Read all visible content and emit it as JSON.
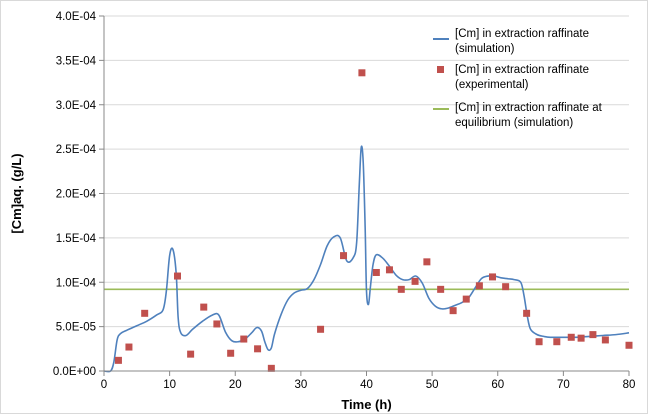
{
  "chart_data": {
    "type": "line",
    "title": "",
    "xlabel": "Time (h)",
    "ylabel": "[Cm]aq. (g/L)",
    "xlim": [
      0,
      80
    ],
    "ylim": [
      0,
      0.0004
    ],
    "x_ticks": [
      0,
      10,
      20,
      30,
      40,
      50,
      60,
      70,
      80
    ],
    "y_ticks": [
      0,
      5e-05,
      0.0001,
      0.00015,
      0.0002,
      0.00025,
      0.0003,
      0.00035,
      0.0004
    ],
    "y_tick_labels": [
      "0.0E+00",
      "5.0E-05",
      "1.0E-04",
      "1.5E-04",
      "2.0E-04",
      "2.5E-04",
      "3.0E-04",
      "3.5E-04",
      "4.0E-04"
    ],
    "grid": "horizontal",
    "legend_position": "top-right",
    "series": [
      {
        "name": "[Cm] in extraction raffinate (simulation)",
        "kind": "line",
        "color": "#4f81bd",
        "x": [
          0,
          1,
          1.5,
          2,
          2.5,
          3.5,
          5,
          6.5,
          8,
          9,
          9.5,
          10,
          10.5,
          11,
          11.3,
          11.7,
          12.5,
          13.5,
          15,
          16.5,
          17.5,
          18.5,
          19.5,
          20.5,
          21.5,
          22.5,
          23.3,
          24,
          24.5,
          25,
          25.5,
          26,
          27,
          28,
          29,
          30,
          31,
          32,
          33,
          34,
          35,
          36,
          37,
          38,
          38.5,
          38.9,
          39.2,
          39.5,
          39.8,
          40,
          40.3,
          40.6,
          41,
          41.5,
          42.5,
          43.5,
          44.5,
          45.5,
          46.5,
          47.5,
          48.5,
          49.5,
          50.5,
          51.5,
          52.5,
          53.5,
          54.5,
          55.5,
          56.5,
          57.5,
          58.5,
          59.5,
          60.5,
          61.5,
          62.5,
          63.5,
          64,
          64.5,
          65,
          66,
          67,
          68,
          70,
          72,
          74,
          76,
          78,
          80
        ],
        "y": [
          0,
          0,
          1e-05,
          3.5e-05,
          4.2e-05,
          4.6e-05,
          5.1e-05,
          5.6e-05,
          6.3e-05,
          6.9e-05,
          9e-05,
          0.00013,
          0.000137,
          0.00011,
          6e-05,
          4.3e-05,
          4e-05,
          4.7e-05,
          5.6e-05,
          6.3e-05,
          6.3e-05,
          4.4e-05,
          3.4e-05,
          3.3e-05,
          3.6e-05,
          4.3e-05,
          4.9e-05,
          4.5e-05,
          3.3e-05,
          2.4e-05,
          2.6e-05,
          4.2e-05,
          6.4e-05,
          8e-05,
          8.8e-05,
          9.1e-05,
          9.3e-05,
          0.000103,
          0.00012,
          0.000141,
          0.000151,
          0.00015,
          0.000124,
          0.000128,
          0.000145,
          0.00021,
          0.000252,
          0.000235,
          0.00016,
          9e-05,
          7.5e-05,
          9.5e-05,
          0.00012,
          0.000131,
          0.000127,
          0.000118,
          0.000108,
          0.000103,
          0.000103,
          0.000107,
          9.9e-05,
          8.2e-05,
          7.3e-05,
          7e-05,
          7.1e-05,
          7.4e-05,
          7.7e-05,
          8.2e-05,
          9.3e-05,
          0.000104,
          0.000107,
          0.000107,
          0.000105,
          0.000104,
          0.000103,
          0.0001,
          8.5e-05,
          6.2e-05,
          4.7e-05,
          4.1e-05,
          3.9e-05,
          3.8e-05,
          3.8e-05,
          3.8e-05,
          3.9e-05,
          4e-05,
          4.1e-05,
          4.3e-05
        ]
      },
      {
        "name": "[Cm] in extraction raffinate (experimental)",
        "kind": "scatter",
        "color": "#c0504d",
        "x": [
          2.2,
          3.8,
          6.2,
          11.2,
          13.2,
          15.2,
          17.2,
          19.3,
          21.3,
          23.4,
          25.5,
          33,
          36.5,
          39.3,
          41.5,
          43.5,
          45.3,
          47.4,
          49.2,
          51.3,
          53.2,
          55.2,
          57.2,
          59.2,
          61.2,
          64.4,
          66.3,
          69,
          71.2,
          72.7,
          74.5,
          76.4,
          80
        ],
        "y": [
          1.2e-05,
          2.7e-05,
          6.5e-05,
          0.000107,
          1.9e-05,
          7.2e-05,
          5.3e-05,
          2e-05,
          3.6e-05,
          2.5e-05,
          3e-06,
          4.7e-05,
          0.00013,
          0.000336,
          0.000111,
          0.000114,
          9.2e-05,
          0.000101,
          0.000123,
          9.2e-05,
          6.8e-05,
          8.1e-05,
          9.6e-05,
          0.000106,
          9.5e-05,
          6.5e-05,
          3.3e-05,
          3.3e-05,
          3.8e-05,
          3.7e-05,
          4.1e-05,
          3.5e-05,
          2.9e-05
        ]
      },
      {
        "name": "[Cm] in extraction raffinate at equilibrium (simulation)",
        "kind": "line",
        "color": "#9bbb59",
        "x": [
          0,
          80
        ],
        "y": [
          9.2e-05,
          9.2e-05
        ]
      }
    ],
    "legend": [
      {
        "lines": [
          "[Cm] in extraction raffinate",
          "(simulation)"
        ]
      },
      {
        "lines": [
          "[Cm] in extraction raffinate",
          "(experimental)"
        ]
      },
      {
        "lines": [
          "[Cm] in extraction raffinate at",
          "equilibrium (simulation)"
        ]
      }
    ]
  }
}
